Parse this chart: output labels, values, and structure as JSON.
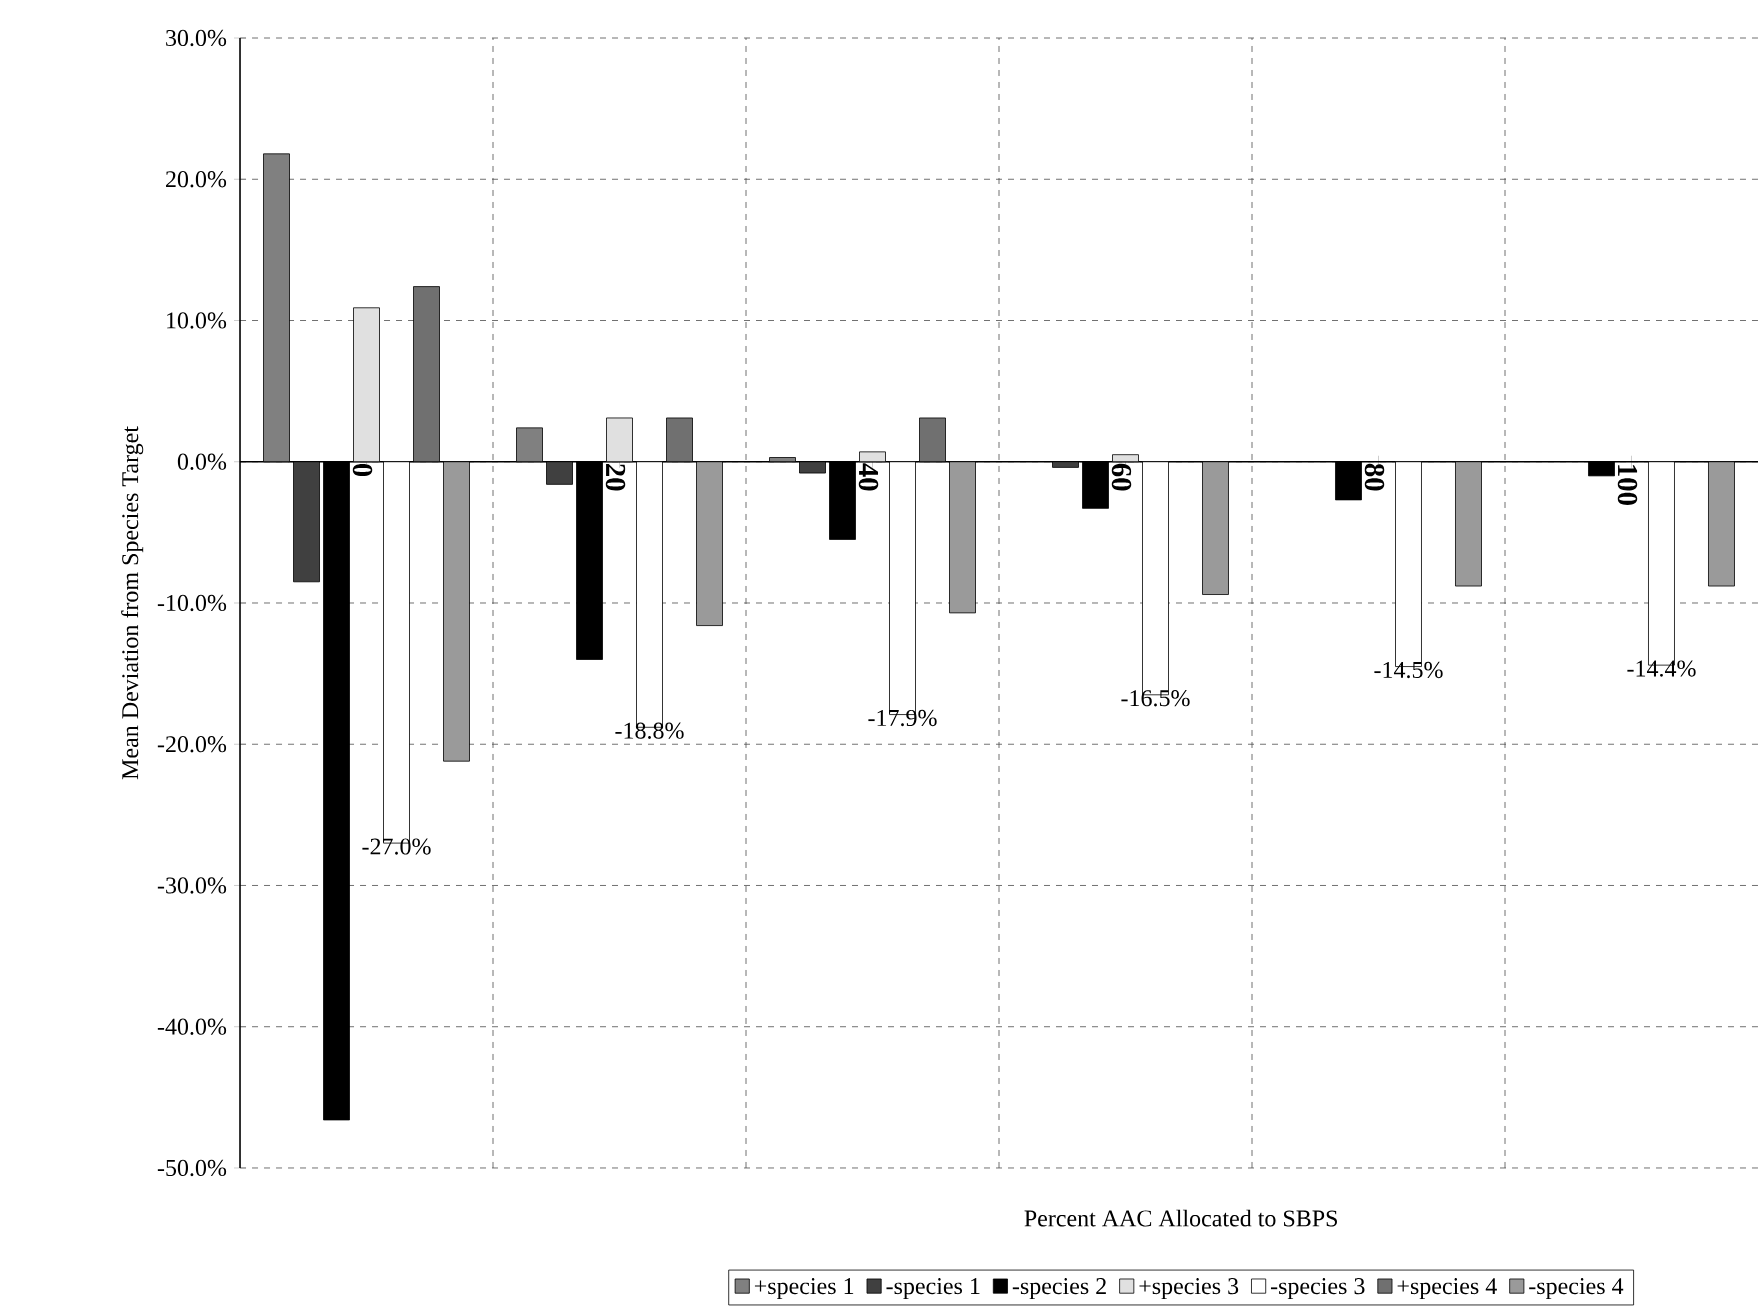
{
  "chart_data": {
    "type": "bar",
    "xlabel": "Percent AAC Allocated to SBPS",
    "ylabel": "Mean Deviation from Species Target",
    "categories": [
      "0",
      "20",
      "40",
      "60",
      "80",
      "100"
    ],
    "series": [
      {
        "name": "+species 1",
        "color": "#808080",
        "values": [
          21.8,
          2.4,
          0.3,
          null,
          null,
          null
        ]
      },
      {
        "name": "-species 1",
        "color": "#404040",
        "values": [
          -8.5,
          -1.6,
          -0.8,
          -0.4,
          null,
          null
        ]
      },
      {
        "name": "-species 2",
        "color": "#000000",
        "values": [
          -46.6,
          -14.0,
          -5.5,
          -3.3,
          -2.7,
          -1.0
        ]
      },
      {
        "name": "+species 3",
        "color": "#e0e0e0",
        "values": [
          10.9,
          3.1,
          0.7,
          0.5,
          null,
          null
        ]
      },
      {
        "name": "-species 3",
        "color": "#ffffff",
        "values": [
          -27.0,
          -18.8,
          -17.9,
          -16.5,
          -14.5,
          -14.4
        ],
        "value_labels": [
          "-27.0%",
          "-18.8%",
          "-17.9%",
          "-16.5%",
          "-14.5%",
          "-14.4%"
        ]
      },
      {
        "name": "+species 4",
        "color": "#707070",
        "values": [
          12.4,
          3.1,
          3.1,
          null,
          null,
          null
        ]
      },
      {
        "name": "-species 4",
        "color": "#9a9a9a",
        "values": [
          -21.2,
          -11.6,
          -10.7,
          -9.4,
          -8.8,
          -8.8
        ]
      }
    ],
    "ylim": [
      -50,
      30
    ],
    "yticks": [
      {
        "value": -50,
        "label": "-50.0%"
      },
      {
        "value": -40,
        "label": "-40.0%"
      },
      {
        "value": -30,
        "label": "-30.0%"
      },
      {
        "value": -20,
        "label": "-20.0%"
      },
      {
        "value": -10,
        "label": "-10.0%"
      },
      {
        "value": 0,
        "label": "0.0%"
      },
      {
        "value": 10,
        "label": "10.0%"
      },
      {
        "value": 20,
        "label": "20.0%"
      },
      {
        "value": 30,
        "label": "30.0%"
      }
    ],
    "grid": true,
    "legend": "bottom"
  }
}
